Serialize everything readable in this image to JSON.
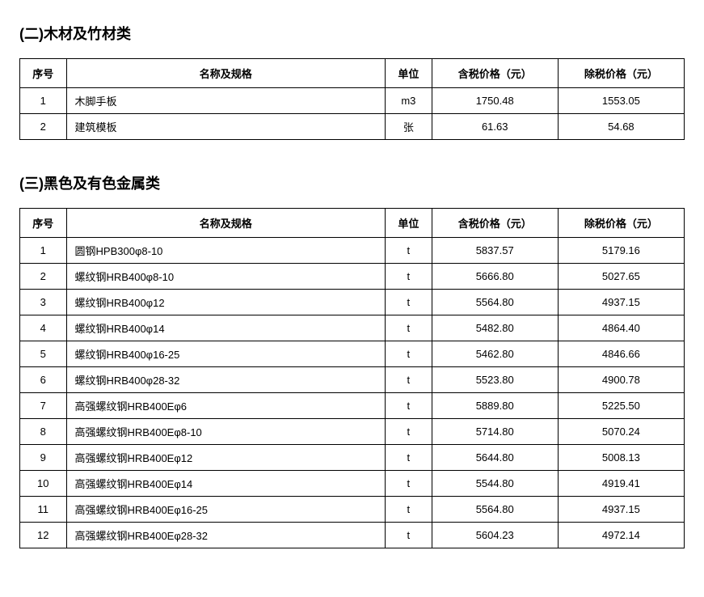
{
  "section1": {
    "title": "(二)木材及竹材类",
    "columns": [
      "序号",
      "名称及规格",
      "单位",
      "含税价格（元）",
      "除税价格（元）"
    ],
    "rows": [
      {
        "seq": "1",
        "name": "木脚手板",
        "unit": "m3",
        "price_tax": "1750.48",
        "price_notax": "1553.05"
      },
      {
        "seq": "2",
        "name": "建筑模板",
        "unit": "张",
        "price_tax": "61.63",
        "price_notax": "54.68"
      }
    ]
  },
  "section2": {
    "title": "(三)黑色及有色金属类",
    "columns": [
      "序号",
      "名称及规格",
      "单位",
      "含税价格（元）",
      "除税价格（元）"
    ],
    "rows": [
      {
        "seq": "1",
        "name": "圆钢HPB300φ8-10",
        "unit": "t",
        "price_tax": "5837.57",
        "price_notax": "5179.16"
      },
      {
        "seq": "2",
        "name": "螺纹钢HRB400φ8-10",
        "unit": "t",
        "price_tax": "5666.80",
        "price_notax": "5027.65"
      },
      {
        "seq": "3",
        "name": "螺纹钢HRB400φ12",
        "unit": "t",
        "price_tax": "5564.80",
        "price_notax": "4937.15"
      },
      {
        "seq": "4",
        "name": "螺纹钢HRB400φ14",
        "unit": "t",
        "price_tax": "5482.80",
        "price_notax": "4864.40"
      },
      {
        "seq": "5",
        "name": "螺纹钢HRB400φ16-25",
        "unit": "t",
        "price_tax": "5462.80",
        "price_notax": "4846.66"
      },
      {
        "seq": "6",
        "name": "螺纹钢HRB400φ28-32",
        "unit": "t",
        "price_tax": "5523.80",
        "price_notax": "4900.78"
      },
      {
        "seq": "7",
        "name": "高强螺纹钢HRB400Eφ6",
        "unit": "t",
        "price_tax": "5889.80",
        "price_notax": "5225.50"
      },
      {
        "seq": "8",
        "name": "高强螺纹钢HRB400Eφ8-10",
        "unit": "t",
        "price_tax": "5714.80",
        "price_notax": "5070.24"
      },
      {
        "seq": "9",
        "name": "高强螺纹钢HRB400Eφ12",
        "unit": "t",
        "price_tax": "5644.80",
        "price_notax": "5008.13"
      },
      {
        "seq": "10",
        "name": "高强螺纹钢HRB400Eφ14",
        "unit": "t",
        "price_tax": "5544.80",
        "price_notax": "4919.41"
      },
      {
        "seq": "11",
        "name": "高强螺纹钢HRB400Eφ16-25",
        "unit": "t",
        "price_tax": "5564.80",
        "price_notax": "4937.15"
      },
      {
        "seq": "12",
        "name": "高强螺纹钢HRB400Eφ28-32",
        "unit": "t",
        "price_tax": "5604.23",
        "price_notax": "4972.14"
      }
    ]
  }
}
